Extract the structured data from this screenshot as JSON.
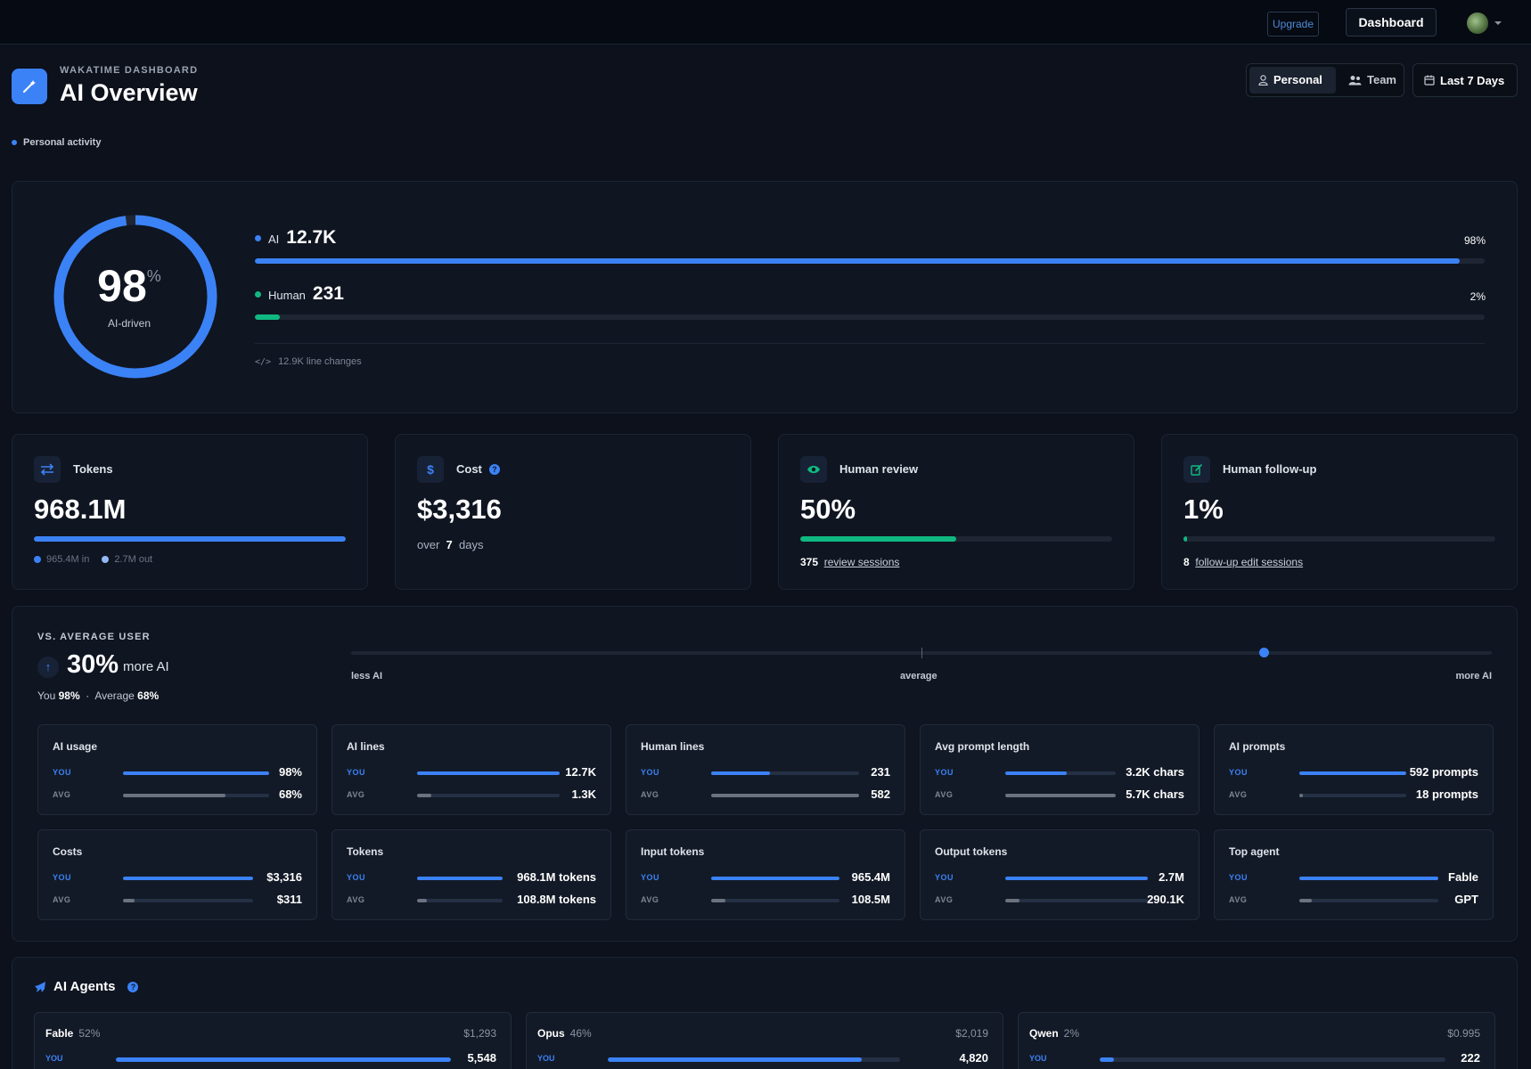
{
  "header": {
    "upgrade_label": "Upgrade",
    "dashboard_label": "Dashboard"
  },
  "page": {
    "brand": "WAKATIME DASHBOARD",
    "title": "AI Overview",
    "activity_label": "Personal activity"
  },
  "scope": {
    "personal_label": "Personal",
    "team_label": "Team",
    "range_label": "Last 7 Days"
  },
  "ai_share": {
    "percent": "98",
    "percent_value": 98,
    "percent_symbol": "%",
    "ring_label": "AI-driven",
    "ai": {
      "label": "AI",
      "value": "12.7K",
      "pct": "98%",
      "fraction": 0.98
    },
    "human": {
      "label": "Human",
      "value": "231",
      "pct": "2%",
      "fraction": 0.02
    },
    "line_changes": "12.9K line changes"
  },
  "stats": {
    "tokens": {
      "title": "Tokens",
      "value": "968.1M",
      "in_label": "965.4M in",
      "out_label": "2.7M out",
      "fraction": 1.0
    },
    "cost": {
      "title": "Cost",
      "value": "$3,316",
      "prefix": "over",
      "days": "7",
      "suffix": "days"
    },
    "review": {
      "title": "Human review",
      "value": "50%",
      "count": "375",
      "link": "review sessions",
      "fraction": 0.5
    },
    "followup": {
      "title": "Human follow-up",
      "value": "1%",
      "count": "8",
      "link": "follow-up edit sessions",
      "fraction": 0.01
    }
  },
  "vs_average": {
    "title": "VS. AVERAGE USER",
    "value": "30%",
    "label": "more AI",
    "you_label": "You",
    "you_value": "98%",
    "separator": "·",
    "avg_label": "Average",
    "avg_value": "68%",
    "scale": {
      "left": "less AI",
      "mid": "average",
      "right": "more AI",
      "position": 0.8
    },
    "you_tag": "YOU",
    "avg_tag": "AVG",
    "metrics": [
      {
        "title": "AI usage",
        "you": "98%",
        "avg": "68%",
        "you_frac": 1.0,
        "avg_frac": 0.7
      },
      {
        "title": "AI lines",
        "you": "12.7K",
        "avg": "1.3K",
        "you_frac": 1.0,
        "avg_frac": 0.1
      },
      {
        "title": "Human lines",
        "you": "231",
        "avg": "582",
        "you_frac": 0.4,
        "avg_frac": 1.0
      },
      {
        "title": "Avg prompt length",
        "you": "3.2K chars",
        "avg": "5.7K chars",
        "you_frac": 0.56,
        "avg_frac": 1.0
      },
      {
        "title": "AI prompts",
        "you": "592 prompts",
        "avg": "18 prompts",
        "you_frac": 1.0,
        "avg_frac": 0.03
      },
      {
        "title": "Costs",
        "you": "$3,316",
        "avg": "$311",
        "you_frac": 1.0,
        "avg_frac": 0.09
      },
      {
        "title": "Tokens",
        "you": "968.1M tokens",
        "avg": "108.8M tokens",
        "you_frac": 1.0,
        "avg_frac": 0.11
      },
      {
        "title": "Input tokens",
        "you": "965.4M",
        "avg": "108.5M",
        "you_frac": 1.0,
        "avg_frac": 0.11
      },
      {
        "title": "Output tokens",
        "you": "2.7M",
        "avg": "290.1K",
        "you_frac": 1.0,
        "avg_frac": 0.1
      },
      {
        "title": "Top agent",
        "you": "Fable",
        "avg": "GPT",
        "you_frac": 1.0,
        "avg_frac": 0.09
      }
    ]
  },
  "agents": {
    "title": "AI Agents",
    "you_tag": "YOU",
    "items": [
      {
        "name": "Fable",
        "share": "52%",
        "price": "$1,293",
        "value": "5,548",
        "fraction": 1.0
      },
      {
        "name": "Opus",
        "share": "46%",
        "price": "$2,019",
        "value": "4,820",
        "fraction": 0.87
      },
      {
        "name": "Qwen",
        "share": "2%",
        "price": "$0.995",
        "value": "222",
        "fraction": 0.04
      }
    ]
  },
  "colors": {
    "accent": "#3b82f6",
    "human": "#10b981",
    "avg_bar": "#6b7280",
    "background": "#0c111b"
  }
}
